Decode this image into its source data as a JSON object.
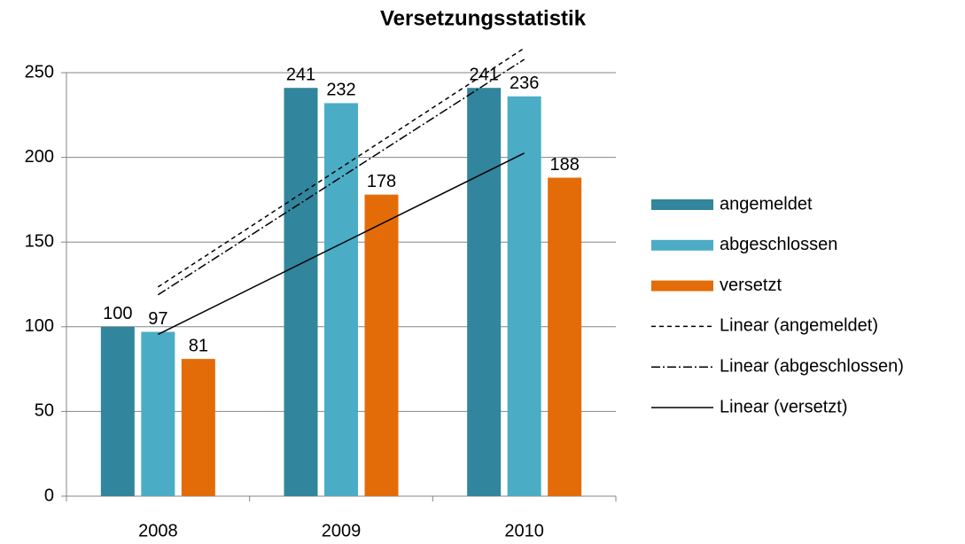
{
  "chart_data": {
    "type": "bar",
    "title": "Versetzungsstatistik",
    "categories": [
      "2008",
      "2009",
      "2010"
    ],
    "series": [
      {
        "name": "angemeldet",
        "color": "#31859c",
        "values": [
          100,
          241,
          241
        ],
        "trendline": "Linear (angemeldet)",
        "trendline_dash": "5,4"
      },
      {
        "name": "abgeschlossen",
        "color": "#4bacc6",
        "values": [
          97,
          232,
          236
        ],
        "trendline": "Linear (abgeschlossen)",
        "trendline_dash": "10,3,2,3"
      },
      {
        "name": "versetzt",
        "color": "#e36c09",
        "values": [
          81,
          178,
          188
        ],
        "trendline": "Linear (versetzt)",
        "trendline_dash": "none"
      }
    ],
    "ylim": [
      0,
      250
    ],
    "yticks": [
      0,
      50,
      100,
      150,
      200,
      250
    ],
    "grid": true,
    "legend": "right"
  }
}
